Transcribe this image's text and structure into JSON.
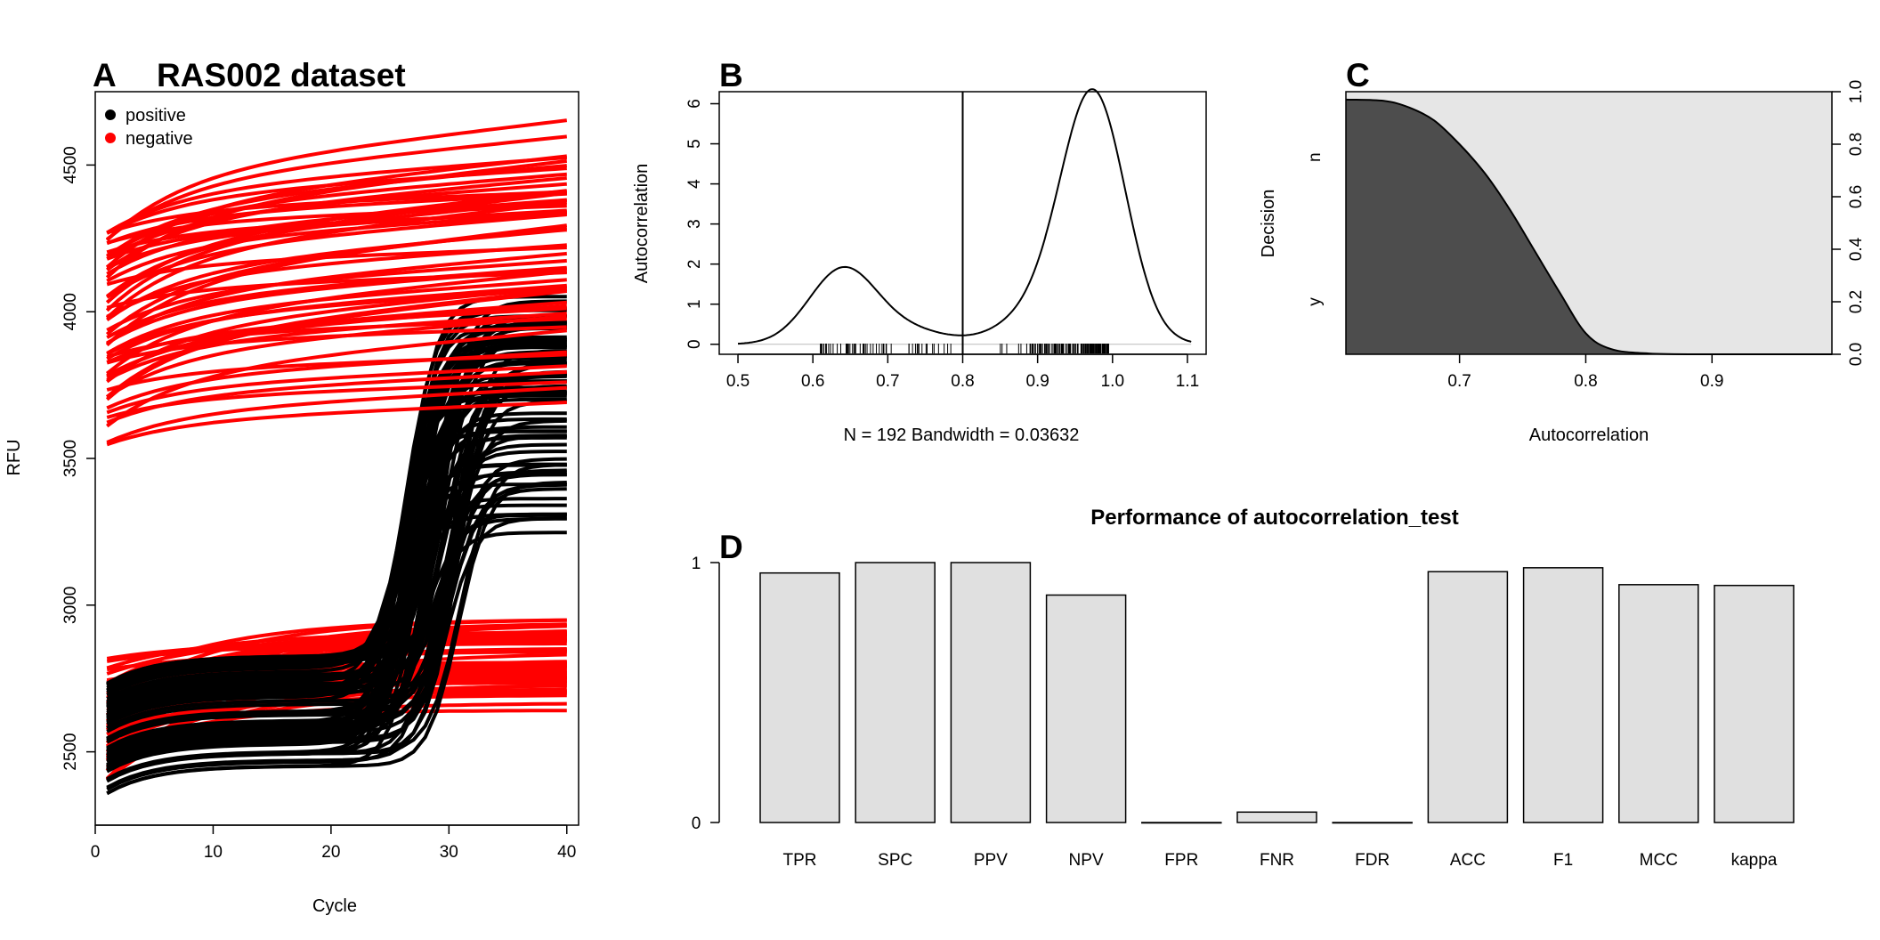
{
  "chart_data": [
    {
      "panel": "A",
      "type": "line",
      "title": "RAS002 dataset",
      "xlabel": "Cycle",
      "ylabel": "RFU",
      "xlim": [
        0,
        41
      ],
      "ylim": [
        2250,
        4750
      ],
      "xticks": [
        0,
        10,
        20,
        30,
        40
      ],
      "yticks": [
        2500,
        3000,
        3500,
        4000,
        4500
      ],
      "legend": {
        "position": "top-left",
        "entries": [
          {
            "label": "positive",
            "color": "#000000"
          },
          {
            "label": "negative",
            "color": "#ff0000"
          }
        ]
      },
      "series_groups": [
        {
          "name": "positive",
          "color": "#000000",
          "count": 80,
          "start_range": [
            2330,
            2710
          ],
          "plateau_range": [
            3200,
            4060
          ],
          "cq_range": [
            26,
            31
          ]
        },
        {
          "name": "negative",
          "color": "#ff0000",
          "count": 60,
          "start_range": [
            2400,
            2820
          ],
          "end_range": [
            2620,
            2950
          ]
        },
        {
          "name": "negative",
          "color": "#ff0000",
          "count": 55,
          "start_range": [
            3510,
            4290
          ],
          "end_range": [
            3700,
            4680
          ]
        }
      ],
      "x": [
        1,
        40
      ]
    },
    {
      "panel": "B",
      "type": "line",
      "title": "",
      "xlabel": "N = 192   Bandwidth = 0.03632",
      "ylabel": "Autocorrelation",
      "xlim": [
        0.475,
        1.125
      ],
      "ylim": [
        -0.25,
        6.3
      ],
      "xticks": [
        0.5,
        0.6,
        0.7,
        0.8,
        0.9,
        1.0,
        1.1
      ],
      "xtick_labels": [
        "0.5",
        "0.6",
        "0.7",
        "0.8",
        "0.9",
        "1.0",
        "1.1"
      ],
      "yticks": [
        0,
        1,
        2,
        3,
        4,
        5,
        6
      ],
      "vline": 0.8,
      "density_components": [
        {
          "mean": 0.64,
          "sd": 0.045,
          "weight": 0.21
        },
        {
          "mean": 0.73,
          "sd": 0.05,
          "weight": 0.04
        },
        {
          "mean": 0.975,
          "sd": 0.043,
          "weight": 0.66
        },
        {
          "mean": 0.9,
          "sd": 0.05,
          "weight": 0.09
        }
      ],
      "rug": {
        "count_low": 60,
        "range_low": [
          0.61,
          0.79
        ],
        "count_high": 132,
        "range_high": [
          0.83,
          0.995
        ]
      }
    },
    {
      "panel": "C",
      "type": "area",
      "title": "",
      "xlabel": "Autocorrelation",
      "ylabel": "Decision",
      "xlim": [
        0.61,
        0.995
      ],
      "ylim": [
        0,
        1
      ],
      "xticks": [
        0.7,
        0.8,
        0.9
      ],
      "xtick_labels": [
        "0.7",
        "0.8",
        "0.9"
      ],
      "yticks_right": [
        0.0,
        0.2,
        0.4,
        0.6,
        0.8,
        1.0
      ],
      "ytick_labels_right": [
        "0.0",
        "0.2",
        "0.4",
        "0.6",
        "0.8",
        "1.0"
      ],
      "category_labels": [
        "y",
        "n"
      ],
      "boundary": [
        [
          0.61,
          0.97
        ],
        [
          0.64,
          0.965
        ],
        [
          0.66,
          0.94
        ],
        [
          0.68,
          0.89
        ],
        [
          0.7,
          0.8
        ],
        [
          0.72,
          0.69
        ],
        [
          0.74,
          0.55
        ],
        [
          0.76,
          0.39
        ],
        [
          0.78,
          0.23
        ],
        [
          0.8,
          0.08
        ],
        [
          0.82,
          0.02
        ],
        [
          0.85,
          0.003
        ],
        [
          0.9,
          0.0
        ],
        [
          0.995,
          0.0
        ]
      ],
      "colors": {
        "lower": "#4d4d4d",
        "upper": "#e6e6e6"
      }
    },
    {
      "panel": "D",
      "type": "bar",
      "title": "Performance of autocorrelation_test",
      "xlabel": "",
      "ylabel": "",
      "ylim": [
        0,
        1
      ],
      "yticks": [
        0,
        1
      ],
      "categories": [
        "TPR",
        "SPC",
        "PPV",
        "NPV",
        "FPR",
        "FNR",
        "FDR",
        "ACC",
        "F1",
        "MCC",
        "kappa"
      ],
      "values": [
        0.96,
        1.0,
        1.0,
        0.875,
        0.0,
        0.04,
        0.0,
        0.965,
        0.98,
        0.915,
        0.912
      ],
      "bar_color": "#e0e0e0"
    }
  ]
}
